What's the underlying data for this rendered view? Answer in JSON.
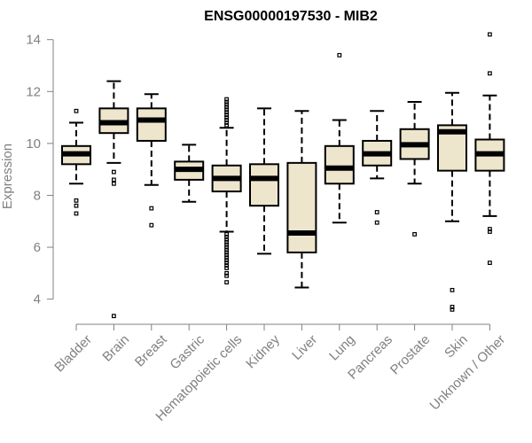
{
  "chart_data": {
    "type": "boxplot",
    "title": "ENSG00000197530 - MIB2",
    "ylabel": "Expression",
    "xlabel": "",
    "ylim": [
      3.1,
      14.4
    ],
    "yticks": [
      4,
      6,
      8,
      10,
      12,
      14
    ],
    "box_fill": "#ede6cd",
    "axis_color": "#808080",
    "categories": [
      "Bladder",
      "Brain",
      "Breast",
      "Gastric",
      "Hematopoietic cells",
      "Kidney",
      "Liver",
      "Lung",
      "Pancreas",
      "Prostate",
      "Skin",
      "Unknown / Other"
    ],
    "series": [
      {
        "name": "Bladder",
        "min": 8.45,
        "q1": 9.2,
        "median": 9.6,
        "q3": 9.9,
        "max": 10.8,
        "outliers": [
          11.25,
          7.8,
          7.6,
          7.3
        ]
      },
      {
        "name": "Brain",
        "min": 9.25,
        "q1": 10.4,
        "median": 10.8,
        "q3": 11.35,
        "max": 12.4,
        "outliers": [
          8.9,
          8.6,
          8.45,
          3.35
        ]
      },
      {
        "name": "Breast",
        "min": 8.4,
        "q1": 10.1,
        "median": 10.9,
        "q3": 11.35,
        "max": 11.9,
        "outliers": [
          7.5,
          6.85
        ]
      },
      {
        "name": "Gastric",
        "min": 7.75,
        "q1": 8.6,
        "median": 9.0,
        "q3": 9.3,
        "max": 9.95,
        "outliers": []
      },
      {
        "name": "Hematopoietic cells",
        "min": 6.6,
        "q1": 8.15,
        "median": 8.65,
        "q3": 9.15,
        "max": 10.6,
        "outliers": [
          11.7,
          11.6,
          11.5,
          11.4,
          11.3,
          11.2,
          11.1,
          11.0,
          10.9,
          10.8,
          10.7,
          6.5,
          6.4,
          6.3,
          6.2,
          6.1,
          6.0,
          5.9,
          5.8,
          5.7,
          5.6,
          5.5,
          5.4,
          5.3,
          5.2,
          5.0,
          4.9,
          4.65
        ]
      },
      {
        "name": "Kidney",
        "min": 5.75,
        "q1": 7.6,
        "median": 8.65,
        "q3": 9.2,
        "max": 11.35,
        "outliers": []
      },
      {
        "name": "Liver",
        "min": 4.45,
        "q1": 5.8,
        "median": 6.55,
        "q3": 9.25,
        "max": 11.25,
        "outliers": []
      },
      {
        "name": "Lung",
        "min": 6.95,
        "q1": 8.45,
        "median": 9.05,
        "q3": 9.9,
        "max": 10.9,
        "outliers": [
          13.4
        ]
      },
      {
        "name": "Pancreas",
        "min": 8.65,
        "q1": 9.15,
        "median": 9.6,
        "q3": 10.1,
        "max": 11.25,
        "outliers": [
          7.35,
          6.95
        ]
      },
      {
        "name": "Prostate",
        "min": 8.45,
        "q1": 9.4,
        "median": 9.95,
        "q3": 10.55,
        "max": 11.6,
        "outliers": [
          6.5
        ]
      },
      {
        "name": "Skin",
        "min": 7.0,
        "q1": 8.95,
        "median": 10.45,
        "q3": 10.7,
        "max": 11.95,
        "outliers": [
          4.35,
          3.7,
          3.6
        ]
      },
      {
        "name": "Unknown / Other",
        "min": 7.2,
        "q1": 8.95,
        "median": 9.6,
        "q3": 10.15,
        "max": 11.85,
        "outliers": [
          14.2,
          12.7,
          6.7,
          6.6,
          5.4
        ]
      }
    ]
  }
}
